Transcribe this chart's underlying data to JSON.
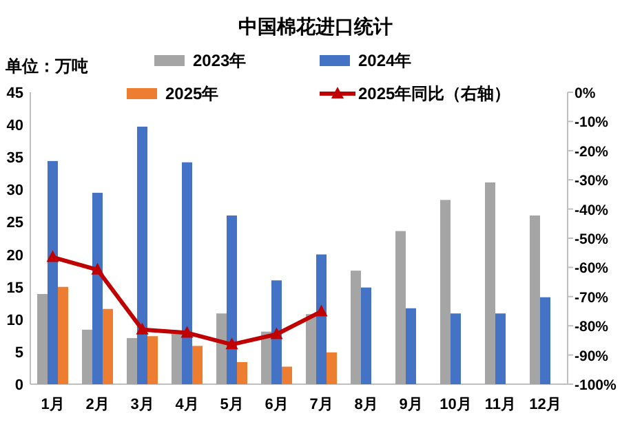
{
  "chart_data": {
    "type": "bar",
    "title": "中国棉花进口统计",
    "annotations": [
      "单位：万吨"
    ],
    "categories": [
      "1月",
      "2月",
      "3月",
      "4月",
      "5月",
      "6月",
      "7月",
      "8月",
      "9月",
      "10月",
      "11月",
      "12月"
    ],
    "series": [
      {
        "name": "2023年",
        "color": "#a5a5a5",
        "values": [
          13.9,
          8.4,
          7.1,
          7.8,
          10.9,
          8.1,
          10.8,
          17.5,
          23.6,
          28.4,
          31.1,
          26.0
        ]
      },
      {
        "name": "2024年",
        "color": "#4472c4",
        "values": [
          34.4,
          29.5,
          39.7,
          34.2,
          26.0,
          16.0,
          20.0,
          14.9,
          11.7,
          10.9,
          10.9,
          13.4
        ]
      },
      {
        "name": "2025年",
        "color": "#ed7d31",
        "values": [
          15.0,
          11.6,
          7.4,
          5.9,
          3.4,
          2.7,
          4.9,
          null,
          null,
          null,
          null,
          null
        ]
      },
      {
        "name": "2025年同比（右轴）",
        "color": "#c00000",
        "type": "line",
        "axis": "y2",
        "marker": "triangle",
        "values": [
          -56.5,
          -60.8,
          -81.3,
          -82.4,
          -86.4,
          -82.9,
          -75.1,
          null,
          null,
          null,
          null,
          null
        ]
      }
    ],
    "ylim": [
      0,
      45
    ],
    "yticks": [
      0,
      5,
      10,
      15,
      20,
      25,
      30,
      35,
      40,
      45
    ],
    "y2lim": [
      -100,
      0
    ],
    "y2ticks": [
      {
        "value": -100,
        "label": "-100%"
      },
      {
        "value": -90,
        "label": "-90%"
      },
      {
        "value": -80,
        "label": "-80%"
      },
      {
        "value": -70,
        "label": "-70%"
      },
      {
        "value": -60,
        "label": "-60%"
      },
      {
        "value": -50,
        "label": "-50%"
      },
      {
        "value": -40,
        "label": "-40%"
      },
      {
        "value": -30,
        "label": "-30%"
      },
      {
        "value": -20,
        "label": "-20%"
      },
      {
        "value": -10,
        "label": "-10%"
      },
      {
        "value": 0,
        "label": "0%"
      }
    ],
    "grid": false,
    "legend": "top"
  }
}
